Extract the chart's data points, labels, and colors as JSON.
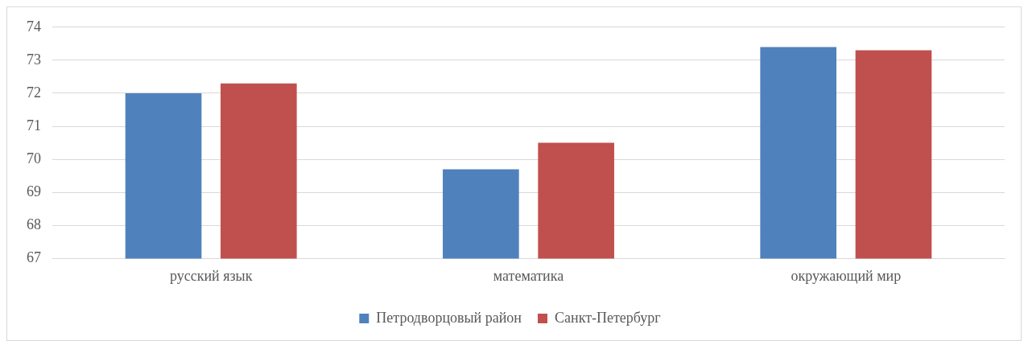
{
  "chart_data": {
    "type": "bar",
    "categories": [
      "русский язык",
      "математика",
      "окружающий мир"
    ],
    "series": [
      {
        "name": "Петродворцовый район",
        "color": "#4f81bd",
        "values": [
          72.0,
          69.7,
          73.4
        ]
      },
      {
        "name": "Санкт-Петербург",
        "color": "#c0504d",
        "values": [
          72.3,
          70.5,
          73.3
        ]
      }
    ],
    "ylim": [
      67,
      74
    ],
    "yticks": [
      67,
      68,
      69,
      70,
      71,
      72,
      73,
      74
    ],
    "grid": "y",
    "legend": "bottom"
  }
}
